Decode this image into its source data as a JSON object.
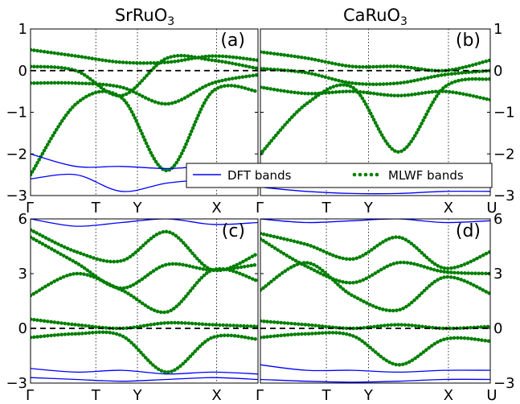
{
  "titles": {
    "left": "SrRuO",
    "left_sub": "3",
    "right": "CaRuO",
    "right_sub": "3"
  },
  "legend": {
    "dft": "DFT bands",
    "mlwf": "MLWF bands"
  },
  "colors": {
    "dft": "#0000ff",
    "mlwf": "#007f00",
    "fermi": "#000000"
  },
  "chart_data": [
    {
      "panel": "(a)",
      "type": "line",
      "compound": "SrRuO3",
      "ylim": [
        -3,
        1
      ],
      "yticks": [
        "1",
        "0",
        "−1",
        "−2",
        "−3"
      ],
      "kpoints": [
        "Γ",
        "T",
        "Y",
        "X"
      ],
      "legend": [
        "DFT bands",
        "MLWF bands"
      ],
      "series": [
        {
          "name": "MLWF bands",
          "values": [
            [
              0.5,
              0.35,
              0.2,
              0.2,
              0.35,
              0.25
            ],
            [
              0.1,
              0.0,
              -0.6,
              0.3,
              0.25,
              0.05
            ],
            [
              -0.3,
              -0.3,
              -0.4,
              -0.8,
              -0.3,
              -0.1
            ],
            [
              -2.5,
              -0.8,
              -0.65,
              -2.4,
              -0.5,
              -0.5
            ]
          ]
        },
        {
          "name": "DFT bands",
          "values": [
            [
              -2.0,
              -2.3,
              -2.3,
              -2.35,
              -2.3,
              -2.4
            ],
            [
              -2.6,
              -2.5,
              -2.9,
              -2.7,
              -2.6,
              -2.5
            ]
          ]
        }
      ]
    },
    {
      "panel": "(b)",
      "type": "line",
      "compound": "CaRuO3",
      "ylim": [
        -3,
        1
      ],
      "yticks": [
        "1",
        "0",
        "−1",
        "−2",
        "−3"
      ],
      "kpoints": [
        "Γ",
        "T",
        "Y",
        "X",
        "U"
      ],
      "series": [
        {
          "name": "MLWF bands",
          "values": [
            [
              0.45,
              0.3,
              0.1,
              0.1,
              0.0,
              0.25
            ],
            [
              0.05,
              -0.05,
              -0.3,
              -0.3,
              -0.1,
              0.0
            ],
            [
              -0.4,
              -0.55,
              -0.5,
              -0.6,
              -0.5,
              -0.7
            ],
            [
              -2.0,
              -0.8,
              -0.4,
              -1.95,
              -0.4,
              -0.2
            ]
          ]
        },
        {
          "name": "DFT bands",
          "values": [
            [
              -2.8,
              -2.9,
              -2.95,
              -2.95,
              -2.9,
              -2.9
            ]
          ]
        }
      ]
    },
    {
      "panel": "(c)",
      "type": "line",
      "compound": "SrRuO3",
      "ylim": [
        -3,
        6
      ],
      "yticks": [
        "6",
        "3",
        "0",
        "−3"
      ],
      "kpoints": [
        "Γ",
        "T",
        "Y",
        "X"
      ],
      "series": [
        {
          "name": "MLWF bands",
          "values": [
            [
              5.4,
              4.2,
              3.7,
              5.3,
              3.2,
              4.1
            ],
            [
              5.0,
              3.6,
              2.2,
              3.5,
              3.2,
              3.5
            ],
            [
              1.8,
              3.0,
              2.1,
              0.9,
              3.2,
              2.6
            ],
            [
              0.5,
              0.2,
              0.0,
              0.3,
              0.2,
              0.1
            ],
            [
              -0.5,
              -0.3,
              -0.4,
              -2.4,
              -0.5,
              -0.6
            ]
          ]
        },
        {
          "name": "DFT bands",
          "values": [
            [
              -2.2,
              -2.4,
              -2.3,
              -2.5,
              -2.4,
              -2.5
            ],
            [
              -2.7,
              -2.8,
              -2.9,
              -2.8,
              -2.7,
              -2.8
            ],
            [
              6.0,
              5.6,
              5.8,
              6.0,
              5.7,
              5.8
            ]
          ]
        }
      ]
    },
    {
      "panel": "(d)",
      "type": "line",
      "compound": "CaRuO3",
      "ylim": [
        -3,
        6
      ],
      "yticks": [
        "6",
        "3",
        "0",
        "−3"
      ],
      "kpoints": [
        "Γ",
        "T",
        "Y",
        "X",
        "U"
      ],
      "series": [
        {
          "name": "MLWF bands",
          "values": [
            [
              5.2,
              4.6,
              3.8,
              5.0,
              3.3,
              4.2
            ],
            [
              4.9,
              3.4,
              2.5,
              3.6,
              3.1,
              3.0
            ],
            [
              2.1,
              3.6,
              1.8,
              1.0,
              2.8,
              1.9
            ],
            [
              0.4,
              0.2,
              0.0,
              0.2,
              0.0,
              0.1
            ],
            [
              -0.5,
              -0.3,
              -0.4,
              -2.0,
              -0.6,
              -0.7
            ]
          ]
        },
        {
          "name": "DFT bands",
          "values": [
            [
              -2.0,
              -2.3,
              -2.3,
              -2.4,
              -2.3,
              -2.3
            ],
            [
              -2.8,
              -2.9,
              -2.95,
              -2.9,
              -2.8,
              -2.8
            ],
            [
              6.0,
              5.8,
              5.9,
              6.0,
              5.8,
              5.9
            ]
          ]
        }
      ]
    }
  ]
}
